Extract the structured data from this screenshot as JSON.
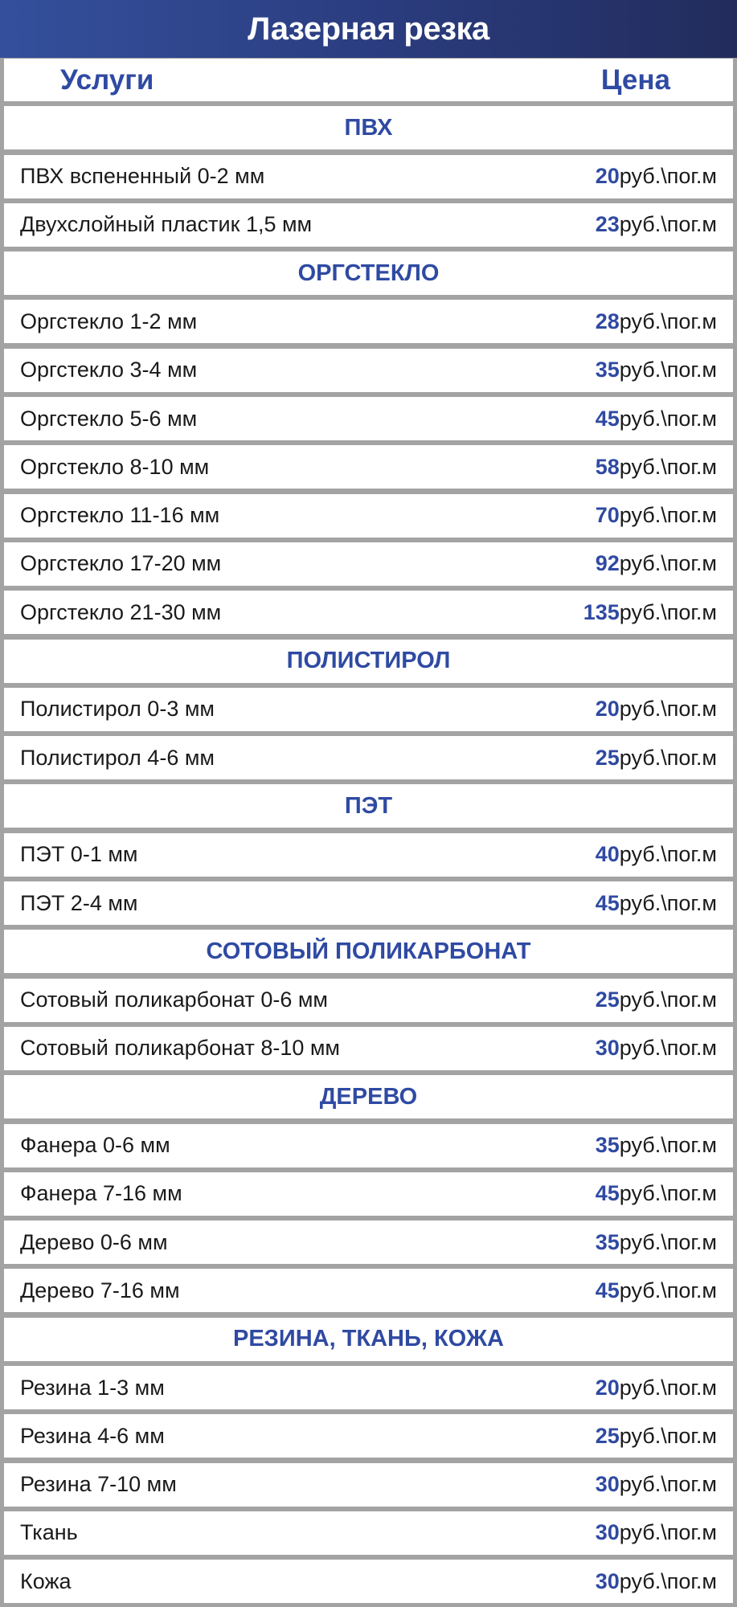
{
  "title": "Лазерная резка",
  "columns": {
    "service": "Услуги",
    "price": "Цена"
  },
  "unit": "руб.\\пог.м",
  "accent_color": "#2f4aa2",
  "categories": [
    {
      "name": "ПВХ",
      "items": [
        {
          "label": "ПВХ вспененный 0-2 мм",
          "price": "20"
        },
        {
          "label": "Двухслойный пластик 1,5 мм",
          "price": "23"
        }
      ]
    },
    {
      "name": "ОРГСТЕКЛО",
      "items": [
        {
          "label": "Оргстекло 1-2 мм",
          "price": "28"
        },
        {
          "label": "Оргстекло 3-4 мм",
          "price": "35"
        },
        {
          "label": "Оргстекло 5-6 мм",
          "price": "45"
        },
        {
          "label": "Оргстекло 8-10 мм",
          "price": "58"
        },
        {
          "label": "Оргстекло 11-16 мм",
          "price": "70"
        },
        {
          "label": "Оргстекло 17-20 мм",
          "price": "92"
        },
        {
          "label": "Оргстекло 21-30 мм",
          "price": "135"
        }
      ]
    },
    {
      "name": "ПОЛИСТИРОЛ",
      "items": [
        {
          "label": "Полистирол 0-3 мм",
          "price": "20"
        },
        {
          "label": "Полистирол 4-6 мм",
          "price": "25"
        }
      ]
    },
    {
      "name": "ПЭТ",
      "items": [
        {
          "label": "ПЭТ 0-1 мм",
          "price": "40"
        },
        {
          "label": "ПЭТ 2-4 мм",
          "price": "45"
        }
      ]
    },
    {
      "name": "СОТОВЫЙ ПОЛИКАРБОНАТ",
      "items": [
        {
          "label": "Сотовый поликарбонат 0-6 мм",
          "price": "25"
        },
        {
          "label": "Сотовый поликарбонат 8-10 мм",
          "price": "30"
        }
      ]
    },
    {
      "name": "ДЕРЕВО",
      "items": [
        {
          "label": "Фанера 0-6 мм",
          "price": "35"
        },
        {
          "label": "Фанера 7-16 мм",
          "price": "45"
        },
        {
          "label": "Дерево 0-6 мм",
          "price": "35"
        },
        {
          "label": "Дерево 7-16 мм",
          "price": "45"
        }
      ]
    },
    {
      "name": "РЕЗИНА, ТКАНЬ, КОЖА",
      "items": [
        {
          "label": "Резина 1-3 мм",
          "price": "20"
        },
        {
          "label": "Резина 4-6 мм",
          "price": "25"
        },
        {
          "label": "Резина 7-10 мм",
          "price": "30"
        },
        {
          "label": "Ткань",
          "price": "30"
        },
        {
          "label": "Кожа",
          "price": "30"
        }
      ]
    }
  ]
}
